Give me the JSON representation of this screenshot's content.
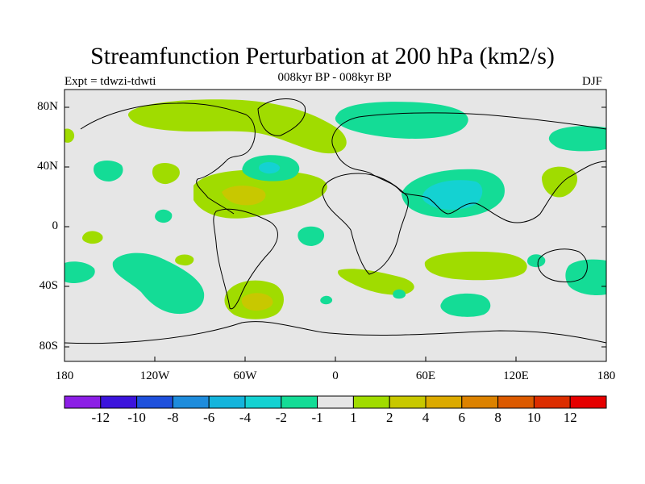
{
  "map": {
    "title": "Streamfunction Perturbation at 200 hPa (km2/s)",
    "subtitle": "008kyr BP - 008kyr BP",
    "left_label": "Expt = tdwzi-tdwti",
    "right_label": "DJF",
    "lat_labels": [
      "80N",
      "40N",
      "0",
      "40S",
      "80S"
    ],
    "lon_labels": [
      "180",
      "120W",
      "60W",
      "0",
      "60E",
      "120E",
      "180"
    ],
    "background_color": "#e6e6e6",
    "coastline_color": "#000000"
  },
  "colorbar": {
    "labels": [
      "-12",
      "-10",
      "-8",
      "-6",
      "-4",
      "-2",
      "-1",
      "1",
      "2",
      "4",
      "6",
      "8",
      "10",
      "12"
    ],
    "colors": [
      "#8c1ee6",
      "#3c14dc",
      "#1e50dc",
      "#1e8cdc",
      "#14b4dc",
      "#14d2d2",
      "#14dc96",
      "#e6e6e6",
      "#a0dc00",
      "#c8c800",
      "#dcaa00",
      "#dc8200",
      "#dc5a00",
      "#dc2d00",
      "#e60000"
    ]
  }
}
